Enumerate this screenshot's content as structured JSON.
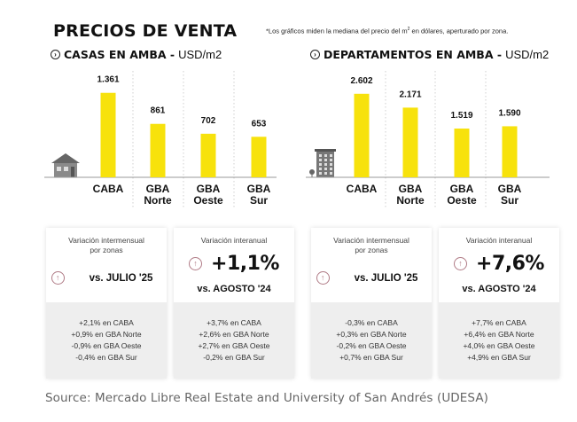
{
  "title": "PRECIOS DE VENTA",
  "footnote": {
    "before": "*Los gráficos miden la mediana del precio del m",
    "sup": "2",
    "after": " en dólares, aperturado por zona."
  },
  "colors": {
    "bar": "#f7e20c",
    "axis": "#9a9a9a",
    "divider": "#cfcfcf",
    "up_icon": "#b07b86",
    "card_bottom_bg": "#eeeeee"
  },
  "sections": [
    {
      "title_bold": "CASAS EN AMBA -",
      "title_unit": " USD/m2",
      "icon": "house-icon",
      "cards": {
        "monthly": {
          "heading_line1": "Variación intermensual",
          "heading_line2": "por zonas",
          "vs_label": "vs. JULIO '25",
          "details": [
            "+2,1% en CABA",
            "+0,9% en GBA Norte",
            "-0,9% en GBA Oeste",
            "-0,4% en GBA Sur"
          ]
        },
        "yearly": {
          "heading": "Variación interanual",
          "value": "+1,1%",
          "vs_label": "vs. AGOSTO '24",
          "details": [
            "+3,7% en CABA",
            "+2,6% en GBA Norte",
            "+2,7% en GBA Oeste",
            "-0,2% en GBA Sur"
          ]
        }
      }
    },
    {
      "title_bold": "DEPARTAMENTOS EN AMBA -",
      "title_unit": " USD/m2",
      "icon": "building-icon",
      "cards": {
        "monthly": {
          "heading_line1": "Variación intermensual",
          "heading_line2": "por zonas",
          "vs_label": "vs. JULIO '25",
          "details": [
            "-0,3% en CABA",
            "+0,3% en GBA Norte",
            "-0,2% en GBA Oeste",
            "+0,7% en GBA Sur"
          ]
        },
        "yearly": {
          "heading": "Variación interanual",
          "value": "+7,6%",
          "vs_label": "vs. AGOSTO '24",
          "details": [
            "+7,7% en CABA",
            "+6,4% en GBA Norte",
            "+4,0% en GBA Oeste",
            "+4,9% en GBA Sur"
          ]
        }
      }
    }
  ],
  "chart_data": [
    {
      "type": "bar",
      "title": "CASAS EN AMBA - USD/m2",
      "xlabel": "",
      "ylabel": "USD/m2",
      "categories": [
        [
          "CABA"
        ],
        [
          "GBA",
          "Norte"
        ],
        [
          "GBA",
          "Oeste"
        ],
        [
          "GBA",
          "Sur"
        ]
      ],
      "values": [
        1361,
        861,
        702,
        653
      ],
      "value_labels": [
        "1.361",
        "861",
        "702",
        "653"
      ],
      "ylim": [
        0,
        1500
      ],
      "grid": false
    },
    {
      "type": "bar",
      "title": "DEPARTAMENTOS EN AMBA - USD/m2",
      "xlabel": "",
      "ylabel": "USD/m2",
      "categories": [
        [
          "CABA"
        ],
        [
          "GBA",
          "Norte"
        ],
        [
          "GBA",
          "Oeste"
        ],
        [
          "GBA",
          "Sur"
        ]
      ],
      "values": [
        2602,
        2171,
        1519,
        1590
      ],
      "value_labels": [
        "2.602",
        "2.171",
        "1.519",
        "1.590"
      ],
      "ylim": [
        0,
        2900
      ],
      "grid": false
    }
  ],
  "source": "Source: Mercado Libre Real Estate and University of San Andrés (UDESA)"
}
